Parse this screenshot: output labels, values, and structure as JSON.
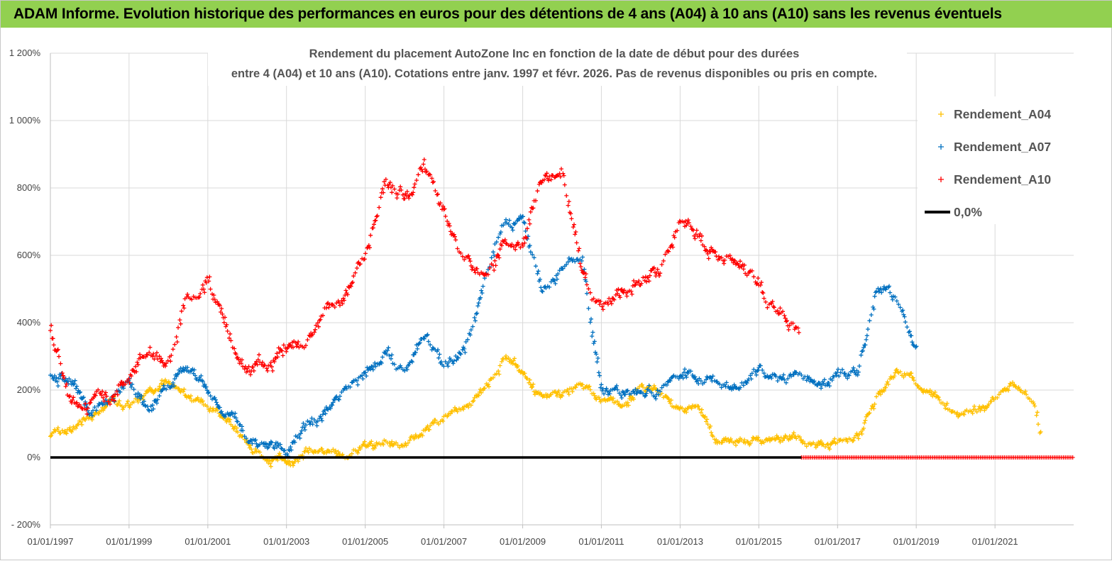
{
  "banner": {
    "text": "ADAM Informe. Evolution historique des performances en euros pour des détentions de 4 ans (A04) à 10 ans (A10) sans les revenus éventuels"
  },
  "colors": {
    "banner_bg": "#92d050",
    "A04": "#ffc000",
    "A07": "#0070c0",
    "A10": "#ff0000",
    "zero_line": "#000000"
  },
  "chart_data": {
    "type": "scatter",
    "title": "Rendement du placement AutoZone Inc en fonction de la date de début pour des durées",
    "subtitle": "entre 4 (A04) et 10 ans (A10). Cotations entre janv. 1997 et févr. 2026. Pas de revenus disponibles ou pris en compte.",
    "xlim": [
      "1997-01-01",
      "2023-01-01"
    ],
    "ylim": [
      -200,
      1200
    ],
    "y_ticks": [
      "- 200%",
      "0%",
      "200%",
      "400%",
      "600%",
      "800%",
      "1 000%",
      "1 200%"
    ],
    "y_tick_values": [
      -200,
      0,
      200,
      400,
      600,
      800,
      1000,
      1200
    ],
    "x_ticks": [
      "01/01/1997",
      "01/01/1999",
      "01/01/2001",
      "01/01/2003",
      "01/01/2005",
      "01/01/2007",
      "01/01/2009",
      "01/01/2011",
      "01/01/2013",
      "01/01/2015",
      "01/01/2017",
      "01/01/2019",
      "01/01/2021"
    ],
    "x_tick_dates": [
      "1997-01-01",
      "1999-01-01",
      "2001-01-01",
      "2003-01-01",
      "2005-01-01",
      "2007-01-01",
      "2009-01-01",
      "2011-01-01",
      "2013-01-01",
      "2015-01-01",
      "2017-01-01",
      "2019-01-01",
      "2021-01-01"
    ],
    "grid": true,
    "legend_position": "top-right",
    "series": [
      {
        "name": "Rendement_A04",
        "marker": "+",
        "x": [
          "1997-01-01",
          "1997-07-01",
          "1998-01-01",
          "1998-07-01",
          "1999-01-01",
          "1999-07-01",
          "2000-01-01",
          "2000-07-01",
          "2001-01-01",
          "2001-07-01",
          "2002-01-01",
          "2002-07-01",
          "2003-01-01",
          "2003-07-01",
          "2004-01-01",
          "2004-07-01",
          "2005-01-01",
          "2005-07-01",
          "2006-01-01",
          "2006-07-01",
          "2007-01-01",
          "2007-07-01",
          "2008-01-01",
          "2008-07-01",
          "2009-01-01",
          "2009-07-01",
          "2010-01-01",
          "2010-07-01",
          "2011-01-01",
          "2011-07-01",
          "2012-01-01",
          "2012-07-01",
          "2013-01-01",
          "2013-07-01",
          "2014-01-01",
          "2014-07-01",
          "2015-01-01",
          "2015-07-01",
          "2016-01-01",
          "2016-07-01",
          "2017-01-01",
          "2017-07-01",
          "2018-01-01",
          "2018-07-01",
          "2019-01-01",
          "2019-07-01",
          "2020-01-01",
          "2020-07-01",
          "2021-01-01",
          "2021-07-01",
          "2022-01-01",
          "2022-03-01"
        ],
        "y": [
          60,
          80,
          130,
          170,
          150,
          190,
          220,
          170,
          140,
          110,
          30,
          -10,
          -15,
          20,
          10,
          10,
          40,
          60,
          40,
          80,
          110,
          140,
          190,
          280,
          260,
          170,
          200,
          230,
          160,
          160,
          200,
          190,
          140,
          140,
          30,
          60,
          50,
          50,
          50,
          40,
          40,
          60,
          200,
          260,
          220,
          200,
          130,
          130,
          170,
          210,
          180,
          80
        ],
        "spread": 28
      },
      {
        "name": "Rendement_A07",
        "marker": "+",
        "x": [
          "1997-01-01",
          "1997-07-01",
          "1998-01-01",
          "1998-07-01",
          "1999-01-01",
          "1999-07-01",
          "2000-01-01",
          "2000-07-01",
          "2001-01-01",
          "2001-07-01",
          "2002-01-01",
          "2002-07-01",
          "2003-01-01",
          "2003-07-01",
          "2004-01-01",
          "2004-07-01",
          "2005-01-01",
          "2005-07-01",
          "2006-01-01",
          "2006-07-01",
          "2007-01-01",
          "2007-07-01",
          "2008-01-01",
          "2008-07-01",
          "2009-01-01",
          "2009-07-01",
          "2010-01-01",
          "2010-07-01",
          "2011-01-01",
          "2011-07-01",
          "2012-01-01",
          "2012-07-01",
          "2013-01-01",
          "2013-07-01",
          "2014-01-01",
          "2014-07-01",
          "2015-01-01",
          "2015-07-01",
          "2016-01-01",
          "2016-07-01",
          "2017-01-01",
          "2017-07-01",
          "2018-01-01",
          "2018-07-01",
          "2019-01-01"
        ],
        "y": [
          250,
          230,
          130,
          160,
          230,
          150,
          200,
          270,
          200,
          130,
          40,
          30,
          20,
          100,
          130,
          190,
          260,
          320,
          250,
          380,
          270,
          320,
          500,
          700,
          700,
          520,
          550,
          600,
          190,
          180,
          190,
          200,
          240,
          240,
          220,
          200,
          250,
          230,
          240,
          230,
          240,
          250,
          500,
          470,
          320
        ],
        "spread": 35
      },
      {
        "name": "Rendement_A10",
        "marker": "+",
        "x": [
          "1997-01-01",
          "1997-07-01",
          "1998-01-01",
          "1998-07-01",
          "1999-01-01",
          "1999-07-01",
          "2000-01-01",
          "2000-07-01",
          "2001-01-01",
          "2001-07-01",
          "2002-01-01",
          "2002-07-01",
          "2003-01-01",
          "2003-07-01",
          "2004-01-01",
          "2004-07-01",
          "2005-01-01",
          "2005-07-01",
          "2006-01-01",
          "2006-07-01",
          "2007-01-01",
          "2007-07-01",
          "2008-01-01",
          "2008-07-01",
          "2009-01-01",
          "2009-07-01",
          "2010-01-01",
          "2010-07-01",
          "2011-01-01",
          "2011-07-01",
          "2012-01-01",
          "2012-07-01",
          "2013-01-01",
          "2013-07-01",
          "2014-01-01",
          "2014-07-01",
          "2015-01-01",
          "2015-07-01",
          "2016-01-01"
        ],
        "y": [
          390,
          200,
          190,
          160,
          250,
          300,
          270,
          470,
          560,
          380,
          230,
          260,
          330,
          330,
          450,
          460,
          600,
          800,
          780,
          870,
          720,
          580,
          530,
          620,
          640,
          820,
          850,
          550,
          430,
          500,
          540,
          560,
          720,
          650,
          610,
          590,
          510,
          430,
          380
        ],
        "spread": 45
      },
      {
        "name": "Rendement_A10 (zero)",
        "marker": "+",
        "x": [
          "2016-02-01",
          "2022-12-31"
        ],
        "y": [
          0,
          0
        ],
        "spread": 0
      }
    ],
    "zero_line": {
      "name": "0,0%",
      "y": 0,
      "x": [
        "1997-01-01",
        "2016-02-01"
      ]
    },
    "legend": [
      {
        "label": "Rendement_A04",
        "kind": "marker",
        "color": "#ffc000"
      },
      {
        "label": "Rendement_A07",
        "kind": "marker",
        "color": "#0070c0"
      },
      {
        "label": "Rendement_A10",
        "kind": "marker",
        "color": "#ff0000"
      },
      {
        "label": "0,0%",
        "kind": "line",
        "color": "#000000"
      }
    ]
  }
}
